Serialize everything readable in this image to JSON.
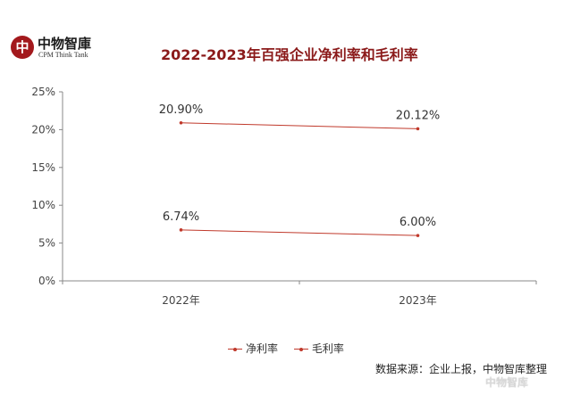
{
  "logo": {
    "mark": "中",
    "cn": "中物智庫",
    "en": "CPM Think Tank"
  },
  "title": "2022-2023年百强企业净利率和毛利率",
  "chart_data": {
    "type": "line",
    "title": "2022-2023年百强企业净利率和毛利率",
    "categories": [
      "2022年",
      "2023年"
    ],
    "series": [
      {
        "name": "净利率",
        "values": [
          6.74,
          6.0
        ],
        "labels": [
          "6.74%",
          "6.00%"
        ],
        "color": "#c0392b"
      },
      {
        "name": "毛利率",
        "values": [
          20.9,
          20.12
        ],
        "labels": [
          "20.90%",
          "20.12%"
        ],
        "color": "#c0392b"
      }
    ],
    "ylim": [
      0,
      25
    ],
    "yticks": [
      "0%",
      "5%",
      "10%",
      "15%",
      "20%",
      "25%"
    ],
    "grid": false,
    "legend": "bottom",
    "xlabel": "",
    "ylabel": ""
  },
  "legend": [
    "净利率",
    "毛利率"
  ],
  "source": "数据来源：企业上报，中物智库整理",
  "watermark": "中物智库"
}
